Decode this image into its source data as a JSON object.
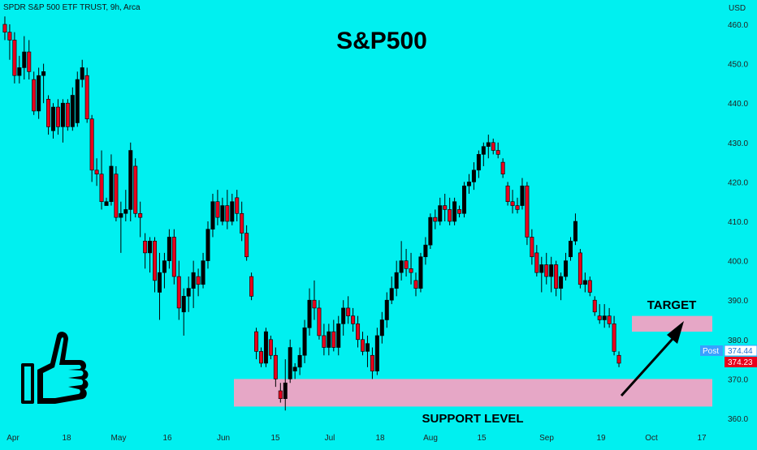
{
  "header": {
    "symbol_line": "SPDR S&P 500 ETF TRUST, 9h, Arca",
    "currency": "USD"
  },
  "chart_data": {
    "type": "candlestick",
    "title": "S&P500",
    "ylim": [
      360,
      465
    ],
    "y_ticks": [
      360,
      370,
      380,
      390,
      400,
      410,
      420,
      430,
      440,
      450,
      460
    ],
    "x_ticks": [
      "Apr",
      "18",
      "May",
      "16",
      "Jun",
      "15",
      "Jul",
      "18",
      "Aug",
      "15",
      "Sep",
      "19",
      "Oct",
      "17"
    ],
    "annotations": {
      "target_label": "TARGET",
      "support_label": "SUPPORT LEVEL",
      "target_zone": [
        382,
        386
      ],
      "support_zone": [
        363,
        370
      ]
    },
    "price_tags": {
      "post_label": "Post",
      "post_value": 374.44,
      "last_value": 374.23
    },
    "colors": {
      "up": "#000000",
      "down": "#e8001c",
      "zone": "#e6a7c6",
      "post_tag": "#3aa0ff",
      "last_tag": "#e8001c",
      "background": "#00f0f0"
    },
    "candles": [
      {
        "o": 460,
        "h": 462,
        "l": 456,
        "c": 458
      },
      {
        "o": 458,
        "h": 460,
        "l": 451,
        "c": 456
      },
      {
        "o": 456,
        "h": 458,
        "l": 445,
        "c": 447
      },
      {
        "o": 447,
        "h": 452,
        "l": 445,
        "c": 449
      },
      {
        "o": 449,
        "h": 457,
        "l": 446,
        "c": 453
      },
      {
        "o": 453,
        "h": 456,
        "l": 446,
        "c": 448
      },
      {
        "o": 446,
        "h": 448,
        "l": 437,
        "c": 438
      },
      {
        "o": 438,
        "h": 449,
        "l": 436,
        "c": 447
      },
      {
        "o": 447,
        "h": 450,
        "l": 440,
        "c": 448
      },
      {
        "o": 441,
        "h": 442,
        "l": 432,
        "c": 434
      },
      {
        "o": 433,
        "h": 440,
        "l": 431,
        "c": 439
      },
      {
        "o": 439,
        "h": 441,
        "l": 432,
        "c": 434
      },
      {
        "o": 434,
        "h": 441,
        "l": 430,
        "c": 440
      },
      {
        "o": 440,
        "h": 441,
        "l": 433,
        "c": 434
      },
      {
        "o": 434,
        "h": 444,
        "l": 433,
        "c": 442
      },
      {
        "o": 435,
        "h": 448,
        "l": 434,
        "c": 446
      },
      {
        "o": 446,
        "h": 451,
        "l": 444,
        "c": 449
      },
      {
        "o": 447,
        "h": 449,
        "l": 435,
        "c": 436
      },
      {
        "o": 436,
        "h": 437,
        "l": 420,
        "c": 423
      },
      {
        "o": 423,
        "h": 426,
        "l": 419,
        "c": 422
      },
      {
        "o": 422,
        "h": 428,
        "l": 413,
        "c": 415
      },
      {
        "o": 414,
        "h": 416,
        "l": 415,
        "c": 415
      },
      {
        "o": 415,
        "h": 427,
        "l": 414,
        "c": 424
      },
      {
        "o": 422,
        "h": 424,
        "l": 410,
        "c": 411
      },
      {
        "o": 411,
        "h": 415,
        "l": 402,
        "c": 412
      },
      {
        "o": 412,
        "h": 418,
        "l": 410,
        "c": 413
      },
      {
        "o": 413,
        "h": 430,
        "l": 410,
        "c": 428
      },
      {
        "o": 424,
        "h": 426,
        "l": 411,
        "c": 412
      },
      {
        "o": 412,
        "h": 415,
        "l": 406,
        "c": 411
      },
      {
        "o": 405,
        "h": 407,
        "l": 398,
        "c": 402
      },
      {
        "o": 402,
        "h": 406,
        "l": 397,
        "c": 405
      },
      {
        "o": 405,
        "h": 406,
        "l": 392,
        "c": 395
      },
      {
        "o": 392,
        "h": 402,
        "l": 385,
        "c": 397
      },
      {
        "o": 397,
        "h": 402,
        "l": 393,
        "c": 400
      },
      {
        "o": 400,
        "h": 408,
        "l": 398,
        "c": 406
      },
      {
        "o": 406,
        "h": 408,
        "l": 394,
        "c": 396
      },
      {
        "o": 396,
        "h": 400,
        "l": 385,
        "c": 388
      },
      {
        "o": 387,
        "h": 393,
        "l": 381,
        "c": 391
      },
      {
        "o": 391,
        "h": 396,
        "l": 387,
        "c": 393
      },
      {
        "o": 393,
        "h": 400,
        "l": 388,
        "c": 397
      },
      {
        "o": 396,
        "h": 398,
        "l": 391,
        "c": 394
      },
      {
        "o": 394,
        "h": 402,
        "l": 393,
        "c": 400
      },
      {
        "o": 400,
        "h": 410,
        "l": 398,
        "c": 408
      },
      {
        "o": 408,
        "h": 417,
        "l": 406,
        "c": 415
      },
      {
        "o": 415,
        "h": 418,
        "l": 409,
        "c": 411
      },
      {
        "o": 410,
        "h": 416,
        "l": 409,
        "c": 414
      },
      {
        "o": 414,
        "h": 418,
        "l": 408,
        "c": 410
      },
      {
        "o": 410,
        "h": 417,
        "l": 409,
        "c": 415
      },
      {
        "o": 416,
        "h": 418,
        "l": 410,
        "c": 412
      },
      {
        "o": 412,
        "h": 415,
        "l": 405,
        "c": 407
      },
      {
        "o": 407,
        "h": 409,
        "l": 400,
        "c": 401
      },
      {
        "o": 396,
        "h": 397,
        "l": 390,
        "c": 391
      },
      {
        "o": 382,
        "h": 383,
        "l": 375,
        "c": 377
      },
      {
        "o": 377,
        "h": 378,
        "l": 373,
        "c": 374
      },
      {
        "o": 374,
        "h": 383,
        "l": 373,
        "c": 382
      },
      {
        "o": 380,
        "h": 381,
        "l": 375,
        "c": 376
      },
      {
        "o": 376,
        "h": 378,
        "l": 368,
        "c": 370
      },
      {
        "o": 367,
        "h": 369,
        "l": 364,
        "c": 365
      },
      {
        "o": 365,
        "h": 375,
        "l": 362,
        "c": 369
      },
      {
        "o": 370,
        "h": 380,
        "l": 369,
        "c": 378
      },
      {
        "o": 372,
        "h": 374,
        "l": 370,
        "c": 373
      },
      {
        "o": 373,
        "h": 378,
        "l": 371,
        "c": 376
      },
      {
        "o": 376,
        "h": 385,
        "l": 374,
        "c": 383
      },
      {
        "o": 383,
        "h": 393,
        "l": 381,
        "c": 390
      },
      {
        "o": 390,
        "h": 395,
        "l": 385,
        "c": 388
      },
      {
        "o": 388,
        "h": 390,
        "l": 380,
        "c": 381
      },
      {
        "o": 381,
        "h": 384,
        "l": 376,
        "c": 378
      },
      {
        "o": 378,
        "h": 384,
        "l": 376,
        "c": 382
      },
      {
        "o": 382,
        "h": 385,
        "l": 377,
        "c": 378
      },
      {
        "o": 378,
        "h": 386,
        "l": 376,
        "c": 384
      },
      {
        "o": 384,
        "h": 390,
        "l": 381,
        "c": 388
      },
      {
        "o": 388,
        "h": 391,
        "l": 384,
        "c": 386
      },
      {
        "o": 386,
        "h": 388,
        "l": 382,
        "c": 384
      },
      {
        "o": 384,
        "h": 386,
        "l": 378,
        "c": 380
      },
      {
        "o": 380,
        "h": 382,
        "l": 376,
        "c": 377
      },
      {
        "o": 377,
        "h": 381,
        "l": 373,
        "c": 379
      },
      {
        "o": 376,
        "h": 378,
        "l": 370,
        "c": 372
      },
      {
        "o": 372,
        "h": 383,
        "l": 371,
        "c": 381
      },
      {
        "o": 381,
        "h": 387,
        "l": 379,
        "c": 385
      },
      {
        "o": 385,
        "h": 392,
        "l": 383,
        "c": 390
      },
      {
        "o": 390,
        "h": 396,
        "l": 389,
        "c": 393
      },
      {
        "o": 393,
        "h": 400,
        "l": 391,
        "c": 397
      },
      {
        "o": 397,
        "h": 405,
        "l": 395,
        "c": 400
      },
      {
        "o": 400,
        "h": 403,
        "l": 396,
        "c": 398
      },
      {
        "o": 398,
        "h": 402,
        "l": 394,
        "c": 397
      },
      {
        "o": 395,
        "h": 397,
        "l": 391,
        "c": 393
      },
      {
        "o": 393,
        "h": 402,
        "l": 392,
        "c": 401
      },
      {
        "o": 401,
        "h": 406,
        "l": 399,
        "c": 404
      },
      {
        "o": 404,
        "h": 412,
        "l": 403,
        "c": 411
      },
      {
        "o": 411,
        "h": 413,
        "l": 408,
        "c": 410
      },
      {
        "o": 410,
        "h": 416,
        "l": 409,
        "c": 414
      },
      {
        "o": 414,
        "h": 417,
        "l": 410,
        "c": 413
      },
      {
        "o": 413,
        "h": 416,
        "l": 409,
        "c": 410
      },
      {
        "o": 410,
        "h": 416,
        "l": 409,
        "c": 415
      },
      {
        "o": 413,
        "h": 414,
        "l": 411,
        "c": 412
      },
      {
        "o": 412,
        "h": 420,
        "l": 411,
        "c": 419
      },
      {
        "o": 419,
        "h": 422,
        "l": 417,
        "c": 420
      },
      {
        "o": 420,
        "h": 425,
        "l": 418,
        "c": 423
      },
      {
        "o": 423,
        "h": 428,
        "l": 421,
        "c": 427
      },
      {
        "o": 427,
        "h": 430,
        "l": 424,
        "c": 429
      },
      {
        "o": 429,
        "h": 432,
        "l": 426,
        "c": 430
      },
      {
        "o": 430,
        "h": 431,
        "l": 427,
        "c": 428
      },
      {
        "o": 428,
        "h": 430,
        "l": 426,
        "c": 427
      },
      {
        "o": 425,
        "h": 426,
        "l": 421,
        "c": 422
      },
      {
        "o": 419,
        "h": 420,
        "l": 414,
        "c": 415
      },
      {
        "o": 415,
        "h": 418,
        "l": 412,
        "c": 414
      },
      {
        "o": 414,
        "h": 416,
        "l": 412,
        "c": 413
      },
      {
        "o": 414,
        "h": 421,
        "l": 413,
        "c": 419
      },
      {
        "o": 419,
        "h": 420,
        "l": 404,
        "c": 406
      },
      {
        "o": 406,
        "h": 408,
        "l": 399,
        "c": 401
      },
      {
        "o": 402,
        "h": 404,
        "l": 396,
        "c": 397
      },
      {
        "o": 397,
        "h": 401,
        "l": 392,
        "c": 399
      },
      {
        "o": 399,
        "h": 402,
        "l": 394,
        "c": 396
      },
      {
        "o": 396,
        "h": 401,
        "l": 392,
        "c": 399
      },
      {
        "o": 399,
        "h": 400,
        "l": 391,
        "c": 393
      },
      {
        "o": 393,
        "h": 397,
        "l": 390,
        "c": 396
      },
      {
        "o": 396,
        "h": 402,
        "l": 395,
        "c": 400
      },
      {
        "o": 401,
        "h": 406,
        "l": 400,
        "c": 405
      },
      {
        "o": 405,
        "h": 412,
        "l": 404,
        "c": 410
      },
      {
        "o": 402,
        "h": 403,
        "l": 393,
        "c": 394
      },
      {
        "o": 394,
        "h": 397,
        "l": 392,
        "c": 395
      },
      {
        "o": 395,
        "h": 396,
        "l": 391,
        "c": 392
      },
      {
        "o": 390,
        "h": 391,
        "l": 386,
        "c": 387
      },
      {
        "o": 386,
        "h": 389,
        "l": 384,
        "c": 385
      },
      {
        "o": 385,
        "h": 389,
        "l": 383,
        "c": 386
      },
      {
        "o": 386,
        "h": 388,
        "l": 383,
        "c": 384
      },
      {
        "o": 384,
        "h": 386,
        "l": 376,
        "c": 377
      },
      {
        "o": 376,
        "h": 377,
        "l": 373,
        "c": 374
      }
    ]
  }
}
